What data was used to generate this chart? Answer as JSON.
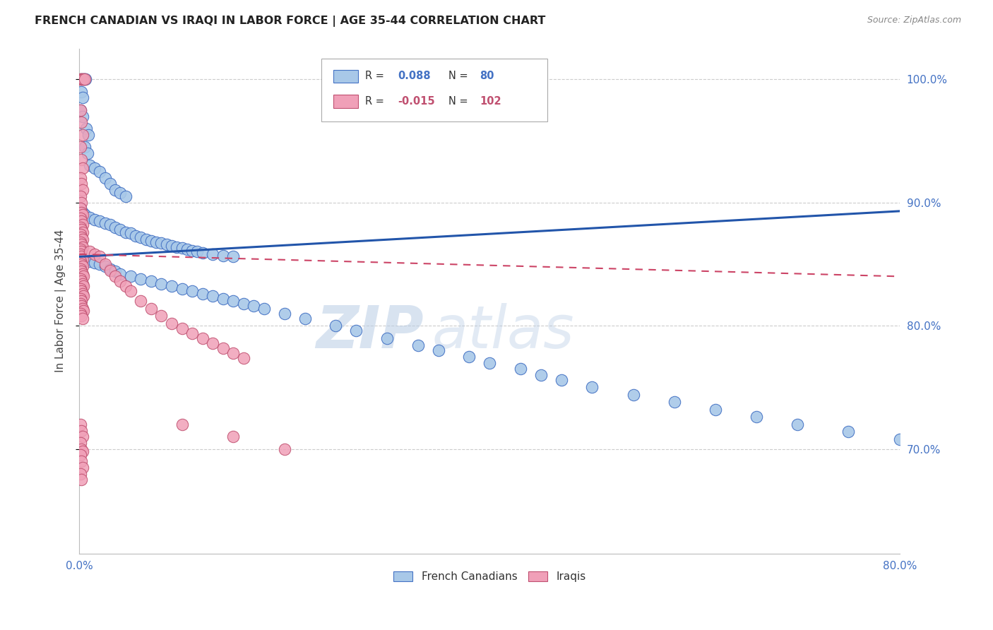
{
  "title": "FRENCH CANADIAN VS IRAQI IN LABOR FORCE | AGE 35-44 CORRELATION CHART",
  "source": "Source: ZipAtlas.com",
  "ylabel": "In Labor Force | Age 35-44",
  "watermark_zip": "ZIP",
  "watermark_atlas": "atlas",
  "xmin": 0.0,
  "xmax": 0.8,
  "ymin": 0.615,
  "ymax": 1.025,
  "xticks": [
    0.0,
    0.1,
    0.2,
    0.3,
    0.4,
    0.5,
    0.6,
    0.7,
    0.8
  ],
  "yticks": [
    0.7,
    0.8,
    0.9,
    1.0
  ],
  "ytick_labels": [
    "70.0%",
    "80.0%",
    "90.0%",
    "100.0%"
  ],
  "xtick_labels": [
    "0.0%",
    "",
    "",
    "",
    "",
    "",
    "",
    "",
    "80.0%"
  ],
  "blue_color": "#A8C8E8",
  "blue_edge_color": "#4472C4",
  "blue_line_color": "#2255AA",
  "pink_color": "#F0A0B8",
  "pink_edge_color": "#C05070",
  "pink_line_color": "#CC4466",
  "grid_color": "#CCCCCC",
  "tick_color": "#4472C4",
  "legend_r_color": "#333333",
  "blue_scatter": [
    [
      0.002,
      1.0
    ],
    [
      0.004,
      1.0
    ],
    [
      0.005,
      1.0
    ],
    [
      0.006,
      1.0
    ],
    [
      0.002,
      0.99
    ],
    [
      0.003,
      0.985
    ],
    [
      0.001,
      0.975
    ],
    [
      0.003,
      0.97
    ],
    [
      0.007,
      0.96
    ],
    [
      0.009,
      0.955
    ],
    [
      0.005,
      0.945
    ],
    [
      0.008,
      0.94
    ],
    [
      0.01,
      0.93
    ],
    [
      0.015,
      0.928
    ],
    [
      0.02,
      0.925
    ],
    [
      0.025,
      0.92
    ],
    [
      0.03,
      0.915
    ],
    [
      0.035,
      0.91
    ],
    [
      0.04,
      0.908
    ],
    [
      0.045,
      0.905
    ],
    [
      0.001,
      0.895
    ],
    [
      0.003,
      0.892
    ],
    [
      0.005,
      0.89
    ],
    [
      0.01,
      0.888
    ],
    [
      0.015,
      0.886
    ],
    [
      0.02,
      0.885
    ],
    [
      0.025,
      0.883
    ],
    [
      0.03,
      0.882
    ],
    [
      0.035,
      0.88
    ],
    [
      0.04,
      0.878
    ],
    [
      0.045,
      0.876
    ],
    [
      0.05,
      0.875
    ],
    [
      0.055,
      0.873
    ],
    [
      0.06,
      0.872
    ],
    [
      0.065,
      0.87
    ],
    [
      0.07,
      0.869
    ],
    [
      0.075,
      0.868
    ],
    [
      0.08,
      0.867
    ],
    [
      0.085,
      0.866
    ],
    [
      0.09,
      0.865
    ],
    [
      0.095,
      0.864
    ],
    [
      0.1,
      0.863
    ],
    [
      0.105,
      0.862
    ],
    [
      0.11,
      0.861
    ],
    [
      0.115,
      0.86
    ],
    [
      0.12,
      0.859
    ],
    [
      0.13,
      0.858
    ],
    [
      0.14,
      0.857
    ],
    [
      0.15,
      0.856
    ],
    [
      0.001,
      0.855
    ],
    [
      0.003,
      0.854
    ],
    [
      0.005,
      0.853
    ],
    [
      0.01,
      0.852
    ],
    [
      0.015,
      0.851
    ],
    [
      0.02,
      0.85
    ],
    [
      0.025,
      0.848
    ],
    [
      0.03,
      0.846
    ],
    [
      0.035,
      0.844
    ],
    [
      0.04,
      0.842
    ],
    [
      0.05,
      0.84
    ],
    [
      0.06,
      0.838
    ],
    [
      0.07,
      0.836
    ],
    [
      0.08,
      0.834
    ],
    [
      0.09,
      0.832
    ],
    [
      0.1,
      0.83
    ],
    [
      0.11,
      0.828
    ],
    [
      0.12,
      0.826
    ],
    [
      0.13,
      0.824
    ],
    [
      0.14,
      0.822
    ],
    [
      0.15,
      0.82
    ],
    [
      0.16,
      0.818
    ],
    [
      0.17,
      0.816
    ],
    [
      0.18,
      0.814
    ],
    [
      0.2,
      0.81
    ],
    [
      0.22,
      0.806
    ],
    [
      0.25,
      0.8
    ],
    [
      0.27,
      0.796
    ],
    [
      0.3,
      0.79
    ],
    [
      0.33,
      0.784
    ],
    [
      0.35,
      0.78
    ],
    [
      0.38,
      0.775
    ],
    [
      0.4,
      0.77
    ],
    [
      0.43,
      0.765
    ],
    [
      0.45,
      0.76
    ],
    [
      0.47,
      0.756
    ],
    [
      0.5,
      0.75
    ],
    [
      0.54,
      0.744
    ],
    [
      0.58,
      0.738
    ],
    [
      0.62,
      0.732
    ],
    [
      0.66,
      0.726
    ],
    [
      0.7,
      0.72
    ],
    [
      0.75,
      0.714
    ],
    [
      0.8,
      0.708
    ]
  ],
  "pink_scatter": [
    [
      0.001,
      1.0
    ],
    [
      0.002,
      1.0
    ],
    [
      0.003,
      1.0
    ],
    [
      0.004,
      1.0
    ],
    [
      0.005,
      1.0
    ],
    [
      0.001,
      0.975
    ],
    [
      0.002,
      0.965
    ],
    [
      0.003,
      0.955
    ],
    [
      0.001,
      0.945
    ],
    [
      0.002,
      0.935
    ],
    [
      0.003,
      0.928
    ],
    [
      0.001,
      0.92
    ],
    [
      0.002,
      0.915
    ],
    [
      0.003,
      0.91
    ],
    [
      0.001,
      0.905
    ],
    [
      0.002,
      0.9
    ],
    [
      0.001,
      0.895
    ],
    [
      0.002,
      0.892
    ],
    [
      0.003,
      0.89
    ],
    [
      0.001,
      0.887
    ],
    [
      0.002,
      0.885
    ],
    [
      0.003,
      0.882
    ],
    [
      0.001,
      0.88
    ],
    [
      0.002,
      0.878
    ],
    [
      0.003,
      0.876
    ],
    [
      0.001,
      0.874
    ],
    [
      0.002,
      0.872
    ],
    [
      0.003,
      0.87
    ],
    [
      0.001,
      0.868
    ],
    [
      0.002,
      0.866
    ],
    [
      0.003,
      0.864
    ],
    [
      0.001,
      0.862
    ],
    [
      0.002,
      0.86
    ],
    [
      0.001,
      0.858
    ],
    [
      0.002,
      0.856
    ],
    [
      0.003,
      0.854
    ],
    [
      0.001,
      0.852
    ],
    [
      0.002,
      0.85
    ],
    [
      0.003,
      0.848
    ],
    [
      0.001,
      0.846
    ],
    [
      0.002,
      0.844
    ],
    [
      0.003,
      0.842
    ],
    [
      0.004,
      0.84
    ],
    [
      0.001,
      0.838
    ],
    [
      0.002,
      0.836
    ],
    [
      0.003,
      0.834
    ],
    [
      0.004,
      0.832
    ],
    [
      0.001,
      0.83
    ],
    [
      0.002,
      0.828
    ],
    [
      0.003,
      0.826
    ],
    [
      0.004,
      0.824
    ],
    [
      0.001,
      0.822
    ],
    [
      0.002,
      0.82
    ],
    [
      0.001,
      0.818
    ],
    [
      0.002,
      0.816
    ],
    [
      0.003,
      0.814
    ],
    [
      0.004,
      0.812
    ],
    [
      0.001,
      0.81
    ],
    [
      0.002,
      0.808
    ],
    [
      0.003,
      0.806
    ],
    [
      0.01,
      0.86
    ],
    [
      0.015,
      0.858
    ],
    [
      0.02,
      0.856
    ],
    [
      0.025,
      0.85
    ],
    [
      0.03,
      0.845
    ],
    [
      0.035,
      0.84
    ],
    [
      0.04,
      0.836
    ],
    [
      0.045,
      0.832
    ],
    [
      0.05,
      0.828
    ],
    [
      0.06,
      0.82
    ],
    [
      0.07,
      0.814
    ],
    [
      0.08,
      0.808
    ],
    [
      0.09,
      0.802
    ],
    [
      0.1,
      0.798
    ],
    [
      0.11,
      0.794
    ],
    [
      0.12,
      0.79
    ],
    [
      0.13,
      0.786
    ],
    [
      0.14,
      0.782
    ],
    [
      0.15,
      0.778
    ],
    [
      0.16,
      0.774
    ],
    [
      0.001,
      0.72
    ],
    [
      0.002,
      0.715
    ],
    [
      0.003,
      0.71
    ],
    [
      0.001,
      0.705
    ],
    [
      0.002,
      0.7
    ],
    [
      0.003,
      0.698
    ],
    [
      0.001,
      0.695
    ],
    [
      0.002,
      0.69
    ],
    [
      0.003,
      0.685
    ],
    [
      0.001,
      0.68
    ],
    [
      0.002,
      0.675
    ],
    [
      0.1,
      0.72
    ],
    [
      0.15,
      0.71
    ],
    [
      0.2,
      0.7
    ]
  ],
  "blue_trend_x": [
    0.0,
    0.8
  ],
  "blue_trend_y": [
    0.856,
    0.893
  ],
  "pink_trend_x": [
    0.0,
    0.8
  ],
  "pink_trend_y": [
    0.858,
    0.84
  ]
}
